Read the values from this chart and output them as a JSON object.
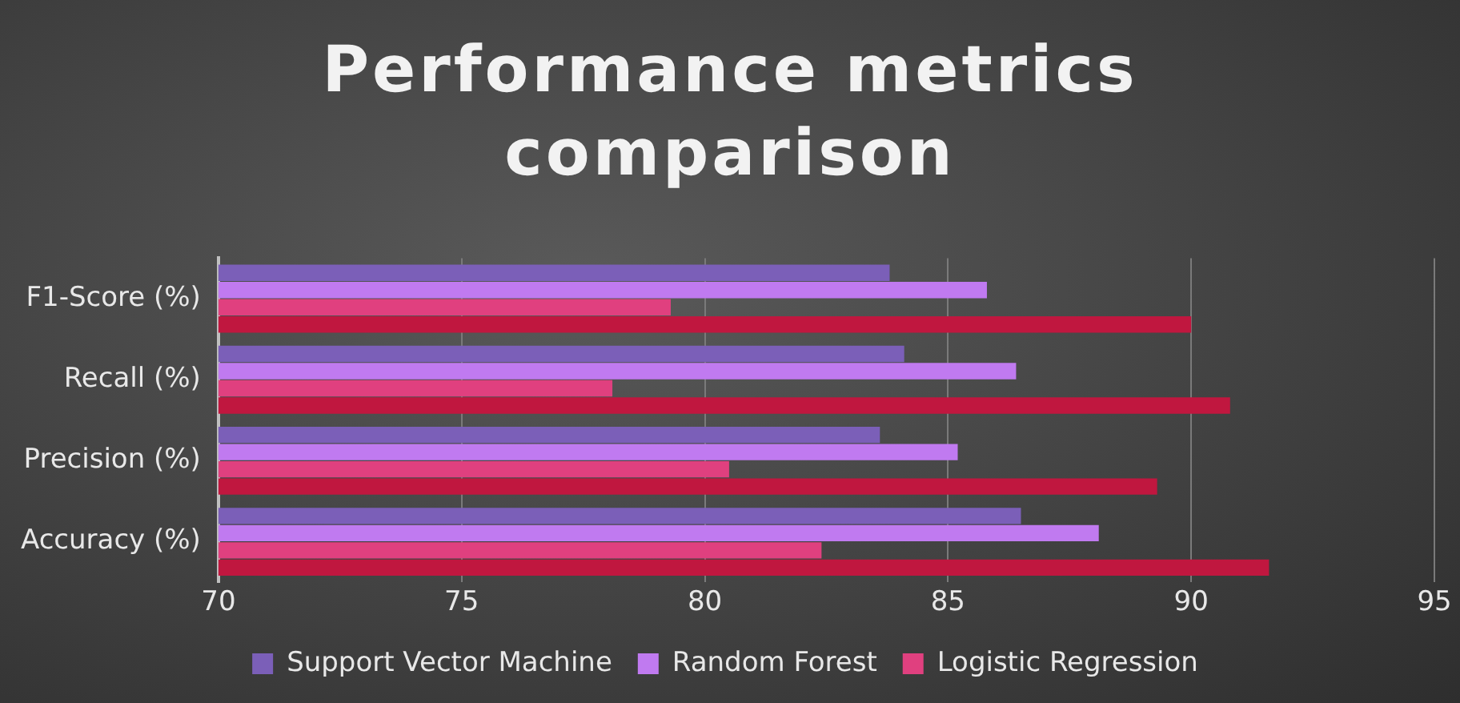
{
  "chart_data": {
    "type": "bar",
    "orientation": "horizontal",
    "title": "Performance metrics comparison",
    "categories": [
      "F1-Score (%)",
      "Recall (%)",
      "Precision (%)",
      "Accuracy (%)"
    ],
    "series": [
      {
        "name": "Support Vector Machine",
        "color": "#7b5fb8",
        "values": [
          83.8,
          84.1,
          83.6,
          86.5
        ]
      },
      {
        "name": "Random Forest",
        "color": "#c07af0",
        "values": [
          85.8,
          86.4,
          85.2,
          88.1
        ]
      },
      {
        "name": "Logistic Regression",
        "color": "#e0407f",
        "values": [
          79.3,
          78.1,
          80.5,
          82.4
        ]
      },
      {
        "color": "#c0173f",
        "values": [
          90.0,
          90.8,
          89.3,
          91.6
        ]
      }
    ],
    "xlim": [
      70,
      95
    ],
    "xticks": [
      70,
      75,
      80,
      85,
      90,
      95
    ],
    "grid": "x",
    "legend": "bottom"
  }
}
